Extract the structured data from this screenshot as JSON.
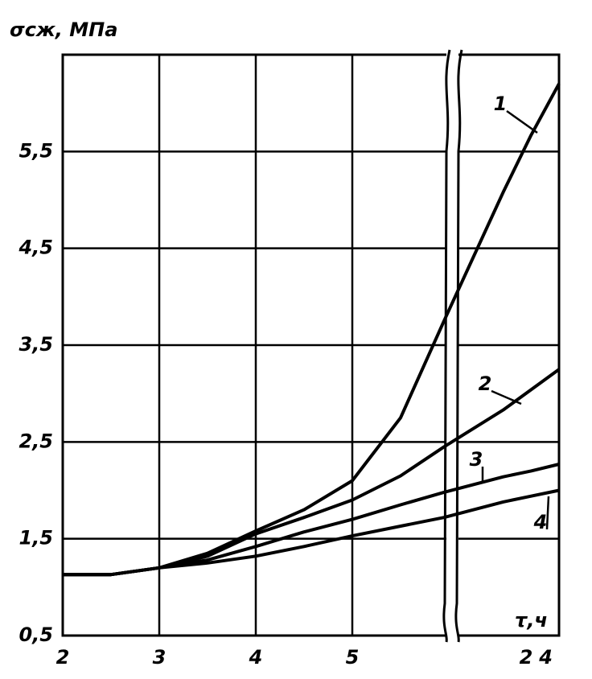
{
  "chart_data": {
    "type": "line",
    "y_label": "σсж, МПа",
    "x_label": "τ,ч",
    "x": [
      2,
      2.5,
      3,
      3.5,
      4,
      4.5,
      5,
      5.5,
      5.95,
      14,
      19,
      24
    ],
    "xlim": [
      2,
      24
    ],
    "xticks": [
      2,
      3,
      4,
      5,
      24
    ],
    "ylim": [
      0.5,
      6.5
    ],
    "yticks": [
      {
        "value": 0.5,
        "label": "0,5"
      },
      {
        "value": 1.5,
        "label": "1,5"
      },
      {
        "value": 2.5,
        "label": "2,5"
      },
      {
        "value": 3.5,
        "label": "3,5"
      },
      {
        "value": 4.5,
        "label": "4,5"
      },
      {
        "value": 5.5,
        "label": "5,5"
      }
    ],
    "grid": true,
    "axis_break": true,
    "series": [
      {
        "name": "1",
        "color": "#000000",
        "values": [
          1.13,
          1.13,
          1.2,
          1.35,
          1.58,
          1.8,
          2.1,
          2.75,
          3.75,
          5.08,
          5.67,
          6.2
        ]
      },
      {
        "name": "2",
        "color": "#000000",
        "values": [
          1.13,
          1.13,
          1.2,
          1.32,
          1.55,
          1.72,
          1.9,
          2.15,
          2.45,
          2.83,
          3.04,
          3.25
        ]
      },
      {
        "name": "3",
        "color": "#000000",
        "values": [
          1.13,
          1.13,
          1.2,
          1.28,
          1.42,
          1.57,
          1.7,
          1.85,
          1.98,
          2.14,
          2.2,
          2.27
        ]
      },
      {
        "name": "4",
        "color": "#000000",
        "values": [
          1.13,
          1.13,
          1.2,
          1.25,
          1.32,
          1.42,
          1.53,
          1.63,
          1.72,
          1.88,
          1.94,
          2.0
        ]
      }
    ]
  }
}
